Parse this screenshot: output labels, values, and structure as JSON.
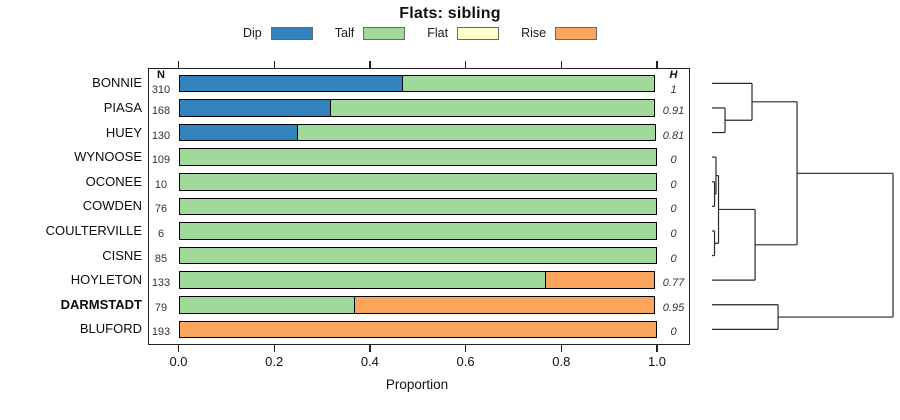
{
  "title": "Flats: sibling",
  "x_axis": {
    "label": "Proportion",
    "ticks": [
      "0.0",
      "0.2",
      "0.4",
      "0.6",
      "0.8",
      "1.0"
    ],
    "range": [
      0,
      1
    ]
  },
  "columns": {
    "n_header": "N",
    "h_header": "H"
  },
  "legend": [
    {
      "label": "Dip",
      "color": "#3182BD"
    },
    {
      "label": "Talf",
      "color": "#A1D99B"
    },
    {
      "label": "Flat",
      "color": "#FFFFCC"
    },
    {
      "label": "Rise",
      "color": "#FBA55C"
    }
  ],
  "chart_data": {
    "type": "bar",
    "stacked": true,
    "orientation": "horizontal",
    "title": "Flats: sibling",
    "xlabel": "Proportion",
    "xlim": [
      0,
      1
    ],
    "grid": false,
    "legend_position": "top",
    "categories": [
      "BONNIE",
      "PIASA",
      "HUEY",
      "WYNOOSE",
      "OCONEE",
      "COWDEN",
      "COULTERVILLE",
      "CISNE",
      "HOYLETON",
      "DARMSTADT",
      "BLUFORD"
    ],
    "bold_categories": [
      "DARMSTADT"
    ],
    "N": [
      310,
      168,
      130,
      109,
      10,
      76,
      6,
      85,
      133,
      79,
      193
    ],
    "H": [
      "1",
      "0.91",
      "0.81",
      "0",
      "0",
      "0",
      "0",
      "0",
      "0.77",
      "0.95",
      "0"
    ],
    "series": [
      {
        "name": "Dip",
        "color": "#3182BD",
        "values": [
          0.47,
          0.32,
          0.25,
          0,
          0,
          0,
          0,
          0,
          0,
          0,
          0
        ]
      },
      {
        "name": "Talf",
        "color": "#A1D99B",
        "values": [
          0.53,
          0.68,
          0.75,
          1,
          1,
          1,
          1,
          1,
          0.77,
          0.37,
          0
        ]
      },
      {
        "name": "Flat",
        "color": "#FFFFCC",
        "values": [
          0,
          0,
          0,
          0,
          0,
          0,
          0,
          0,
          0,
          0,
          0
        ]
      },
      {
        "name": "Rise",
        "color": "#FBA55C",
        "values": [
          0,
          0,
          0,
          0,
          0,
          0,
          0,
          0,
          0.23,
          0.63,
          1
        ]
      }
    ],
    "dendrogram": {
      "leaf_order": [
        "BONNIE",
        "PIASA",
        "HUEY",
        "WYNOOSE",
        "OCONEE",
        "COWDEN",
        "COULTERVILLE",
        "CISNE",
        "HOYLETON",
        "DARMSTADT",
        "BLUFORD"
      ],
      "merges": [
        {
          "children": [
            1,
            2
          ],
          "height": 0.072
        },
        {
          "children": [
            0,
            "m0"
          ],
          "height": 0.221
        },
        {
          "children": [
            4,
            5
          ],
          "height": 0.014
        },
        {
          "children": [
            3,
            "m2"
          ],
          "height": 0.022
        },
        {
          "children": [
            6,
            7
          ],
          "height": 0.014
        },
        {
          "children": [
            "m3",
            "m4"
          ],
          "height": 0.036
        },
        {
          "children": [
            "m5",
            8
          ],
          "height": 0.238
        },
        {
          "children": [
            "m1",
            "m6"
          ],
          "height": 0.47
        },
        {
          "children": [
            9,
            10
          ],
          "height": 0.365
        },
        {
          "children": [
            "m7",
            "m8"
          ],
          "height": 1.0
        }
      ]
    }
  }
}
